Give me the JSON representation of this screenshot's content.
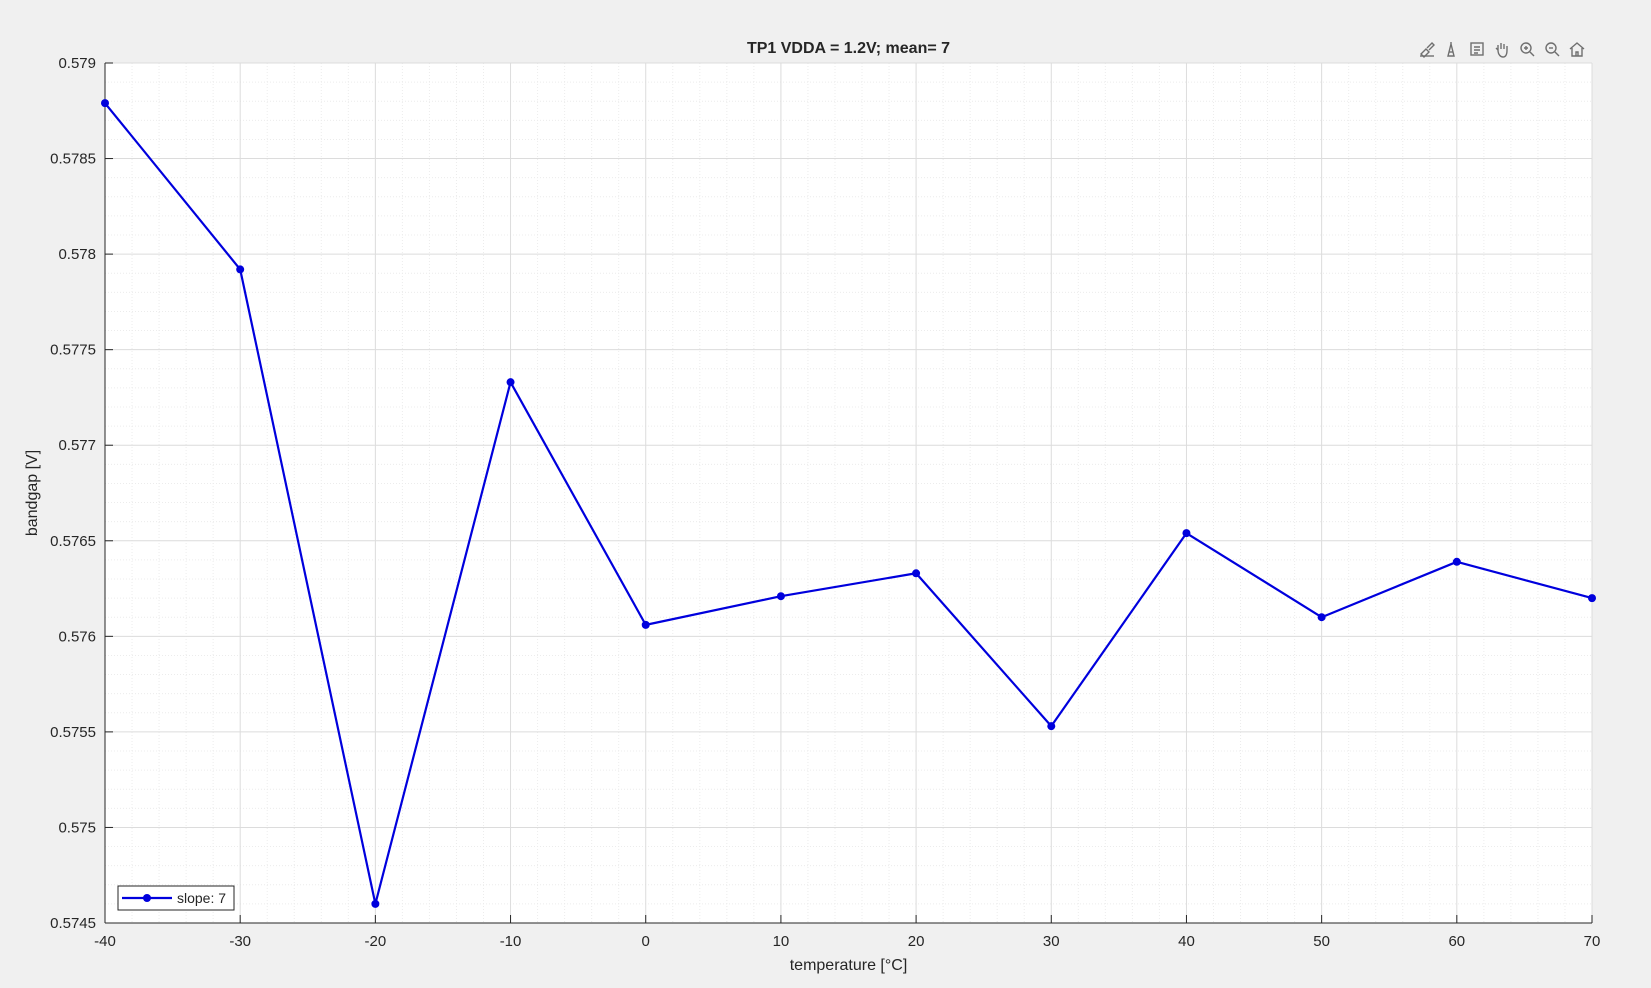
{
  "chart_data": {
    "type": "line",
    "title": "TP1 VDDA = 1.2V; mean= 7",
    "xlabel": "temperature [°C]",
    "ylabel": "bandgap [V]",
    "xlim": [
      -40,
      70
    ],
    "ylim": [
      0.5745,
      0.579
    ],
    "x_ticks": [
      -40,
      -30,
      -20,
      -10,
      0,
      10,
      20,
      30,
      40,
      50,
      60,
      70
    ],
    "x_tick_labels": [
      "-40",
      "-30",
      "-20",
      "-10",
      "0",
      "10",
      "20",
      "30",
      "40",
      "50",
      "60",
      "70"
    ],
    "y_ticks": [
      0.5745,
      0.575,
      0.5755,
      0.576,
      0.5765,
      0.577,
      0.5775,
      0.578,
      0.5785,
      0.579
    ],
    "y_tick_labels": [
      "0.5745",
      "0.575",
      "0.5755",
      "0.576",
      "0.5765",
      "0.577",
      "0.5775",
      "0.578",
      "0.5785",
      "0.579"
    ],
    "grid": true,
    "minor_grid": true,
    "legend_location": "bottom-left",
    "series": [
      {
        "name": "slope: 7",
        "color": "#0000dd",
        "marker": "circle",
        "x": [
          -40,
          -30,
          -20,
          -10,
          0,
          10,
          20,
          30,
          40,
          50,
          60,
          70
        ],
        "y": [
          0.57879,
          0.57792,
          0.5746,
          0.57733,
          0.57606,
          0.57621,
          0.57633,
          0.57553,
          0.57654,
          0.5761,
          0.57639,
          0.5762
        ]
      }
    ]
  },
  "toolbar": {
    "icons": [
      "brush-icon",
      "data-tips-icon",
      "legend-icon",
      "pan-icon",
      "zoom-in-icon",
      "zoom-out-icon",
      "home-icon"
    ]
  }
}
